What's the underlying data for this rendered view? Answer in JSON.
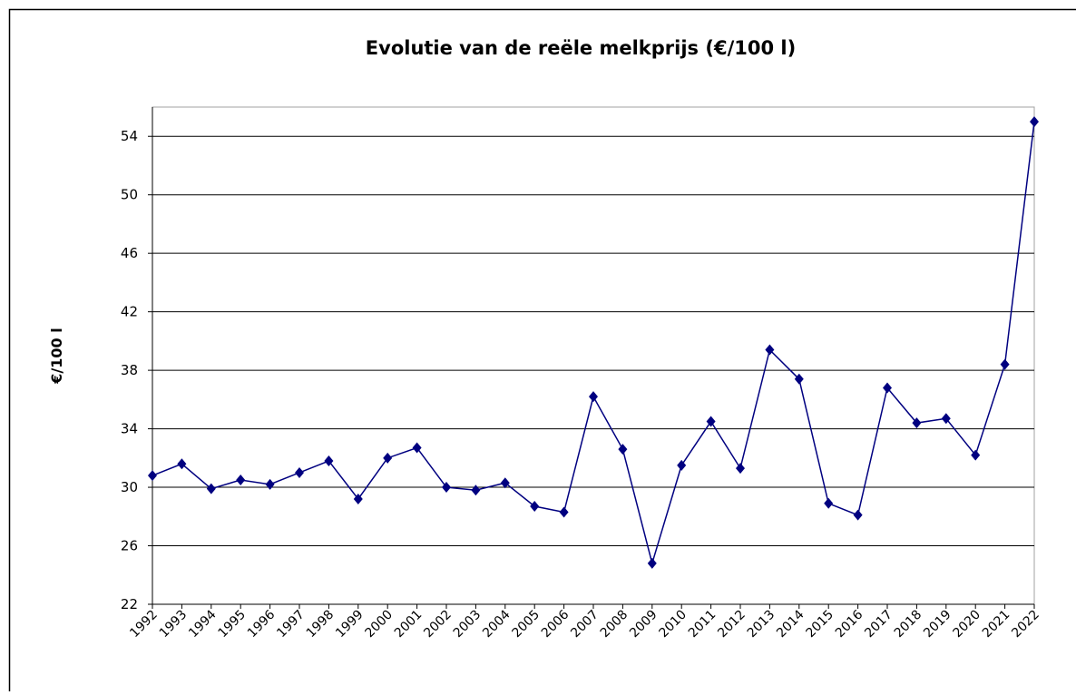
{
  "chart_data": {
    "type": "line",
    "title": "Evolutie van de reële melkprijs (€/100 l)",
    "y_label": "€/100 l",
    "x": [
      1992,
      1993,
      1994,
      1995,
      1996,
      1997,
      1998,
      1999,
      2000,
      2001,
      2002,
      2003,
      2004,
      2005,
      2006,
      2007,
      2008,
      2009,
      2010,
      2011,
      2012,
      2013,
      2014,
      2015,
      2016,
      2017,
      2018,
      2019,
      2020,
      2021,
      2022
    ],
    "xlim": [
      1992,
      2022
    ],
    "series": [
      {
        "name": "Reële melkprijs",
        "color": "#000080",
        "values": [
          30.8,
          31.6,
          29.9,
          30.5,
          30.2,
          31.0,
          31.8,
          29.2,
          32.0,
          32.7,
          30.0,
          29.8,
          30.3,
          28.7,
          28.3,
          36.2,
          32.6,
          24.8,
          31.5,
          34.5,
          31.3,
          39.4,
          37.4,
          28.9,
          28.1,
          36.8,
          34.4,
          34.7,
          32.2,
          38.4,
          55.0
        ]
      }
    ],
    "ylim": [
      22,
      56
    ],
    "yticks": [
      22,
      26,
      30,
      34,
      38,
      42,
      46,
      50,
      54
    ],
    "grid": true
  }
}
